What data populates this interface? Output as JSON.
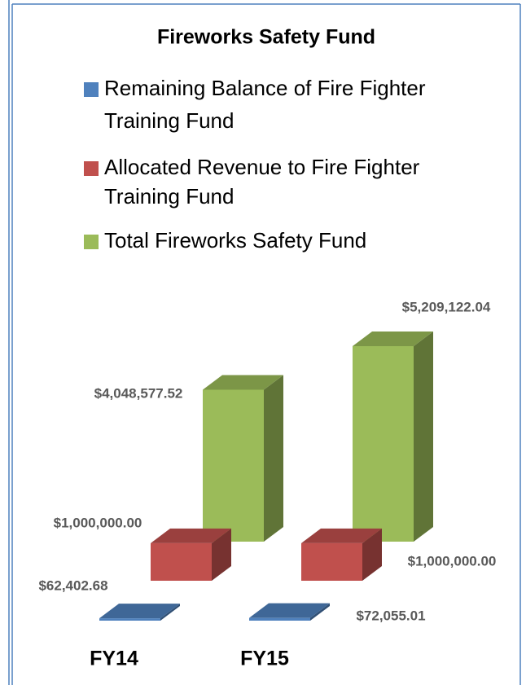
{
  "chart_data": {
    "type": "bar3d",
    "title": "Fireworks Safety Fund",
    "categories": [
      "FY14",
      "FY15"
    ],
    "series": [
      {
        "name": "Remaining Balance of Fire Fighter Training Fund",
        "color": "#4f81bd",
        "values": [
          62402.68,
          72055.01
        ],
        "value_labels": [
          "$62,402.68",
          "$72,055.01"
        ]
      },
      {
        "name": "Allocated Revenue to Fire Fighter Training Fund",
        "color": "#c0504d",
        "values": [
          1000000,
          1000000
        ],
        "value_labels": [
          "$1,000,000.00",
          "$1,000,000.00"
        ]
      },
      {
        "name": "Total Fireworks Safety Fund",
        "color": "#9bbb59",
        "values": [
          4048577.52,
          5209122.04
        ],
        "value_labels": [
          "$4,048,577.52",
          "$5,209,122.04"
        ]
      }
    ]
  }
}
